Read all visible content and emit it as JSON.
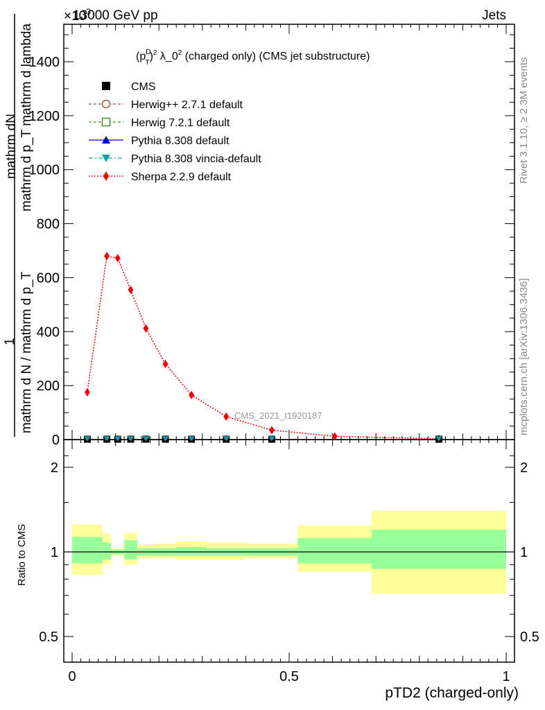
{
  "header": {
    "left": "13000 GeV pp",
    "right": "Jets",
    "exponent": "×10",
    "exponent_power": "3"
  },
  "side_labels": {
    "rivet": "Rivet 3.1.10, ≥ 2.3M events",
    "mcplots": "mcplots.cern.ch [arXiv:1306.3436]"
  },
  "chart_data": [
    {
      "type": "line",
      "panel": "main",
      "title": "(p_T^D)^2 λ_0^2 (charged only) (CMS jet substructure)",
      "title_parts": {
        "a": "(p",
        "sup1": "D",
        "sub1": "T",
        "b": ")",
        "sup2": "2",
        "c": " λ_0",
        "sup3": "2",
        "d": " (charged only) (CMS jet substructure)"
      },
      "ylabel_num": "mathrm dN",
      "ylabel_den": "mathrm d p_T mathrm d lambda",
      "ylabel_one": "1",
      "ylabel_den2": "mathrm d N / mathrm d p_T",
      "ylabel_full": "mathrm d N / mathrm d p_T mathrm d p_T mathrm d lambda",
      "xlabel": "pTD2 (charged-only)",
      "ylim": [
        0,
        1550
      ],
      "xlim": [
        -0.02,
        1.0
      ],
      "y_ticks": [
        {
          "v": 0,
          "label": "0"
        },
        {
          "v": 200,
          "label": "200"
        },
        {
          "v": 400,
          "label": "400"
        },
        {
          "v": 600,
          "label": "600"
        },
        {
          "v": 800,
          "label": "800"
        },
        {
          "v": 1000,
          "label": "1000"
        },
        {
          "v": 1200,
          "label": "1200"
        },
        {
          "v": 1400,
          "label": "1400"
        }
      ],
      "watermark": "CMS_2021_I1920187",
      "legend": [
        {
          "name": "CMS",
          "color": "#000000",
          "marker": "square-filled",
          "line": "none"
        },
        {
          "name": "Herwig++ 2.7.1 default",
          "color": "#a0522d",
          "marker": "circle-open",
          "line": "dashed"
        },
        {
          "name": "Herwig 7.2.1 default",
          "color": "#3a8a1e",
          "marker": "square-open",
          "line": "dashed"
        },
        {
          "name": "Pythia 8.308 default",
          "color": "#0000cc",
          "marker": "triangle-up",
          "line": "solid"
        },
        {
          "name": "Pythia 8.308 vincia-default",
          "color": "#1a9aaa",
          "marker": "triangle-down",
          "line": "dashdot"
        },
        {
          "name": "Sherpa 2.2.9 default",
          "color": "#ee0000",
          "marker": "diamond",
          "line": "dotted"
        }
      ],
      "series": [
        {
          "name": "Sherpa 2.2.9 default",
          "color": "#ee0000",
          "x": [
            0.035,
            0.08,
            0.105,
            0.135,
            0.17,
            0.215,
            0.275,
            0.355,
            0.46,
            0.605,
            0.845
          ],
          "values": [
            175,
            680,
            672,
            555,
            412,
            280,
            165,
            85,
            35,
            12,
            3
          ]
        },
        {
          "name": "CMS",
          "color": "#000000",
          "x": [
            0.035,
            0.08,
            0.105,
            0.135,
            0.17,
            0.215,
            0.275,
            0.355,
            0.46,
            0.845
          ],
          "values": [
            1.5,
            1.5,
            1.5,
            1.5,
            1.5,
            1.5,
            1.5,
            1.5,
            1.5,
            1.5
          ]
        }
      ]
    },
    {
      "type": "area",
      "panel": "ratio",
      "ylabel": "Ratio to CMS",
      "ylim": [
        0.4,
        2.3
      ],
      "y_ticks": [
        {
          "v": 0.5,
          "label": "0.5"
        },
        {
          "v": 1,
          "label": "1"
        },
        {
          "v": 2,
          "label": "2"
        }
      ],
      "x_ticks": [
        {
          "v": 0,
          "label": "0"
        },
        {
          "v": 0.5,
          "label": "0.5"
        },
        {
          "v": 1,
          "label": "1"
        }
      ],
      "bins": [
        {
          "lo": 0.0,
          "hi": 0.07,
          "in_lo": 0.91,
          "in_hi": 1.13,
          "out_lo": 0.83,
          "out_hi": 1.25
        },
        {
          "lo": 0.07,
          "hi": 0.09,
          "in_lo": 0.94,
          "in_hi": 1.08,
          "out_lo": 0.9,
          "out_hi": 1.16
        },
        {
          "lo": 0.09,
          "hi": 0.12,
          "in_lo": 0.98,
          "in_hi": 1.02,
          "out_lo": 0.97,
          "out_hi": 1.03
        },
        {
          "lo": 0.12,
          "hi": 0.15,
          "in_lo": 0.94,
          "in_hi": 1.1,
          "out_lo": 0.9,
          "out_hi": 1.17
        },
        {
          "lo": 0.15,
          "hi": 0.19,
          "in_lo": 0.97,
          "in_hi": 1.03,
          "out_lo": 0.95,
          "out_hi": 1.06
        },
        {
          "lo": 0.19,
          "hi": 0.24,
          "in_lo": 0.97,
          "in_hi": 1.03,
          "out_lo": 0.95,
          "out_hi": 1.07
        },
        {
          "lo": 0.24,
          "hi": 0.31,
          "in_lo": 0.97,
          "in_hi": 1.04,
          "out_lo": 0.94,
          "out_hi": 1.09
        },
        {
          "lo": 0.31,
          "hi": 0.4,
          "in_lo": 0.97,
          "in_hi": 1.03,
          "out_lo": 0.94,
          "out_hi": 1.08
        },
        {
          "lo": 0.4,
          "hi": 0.52,
          "in_lo": 0.97,
          "in_hi": 1.03,
          "out_lo": 0.95,
          "out_hi": 1.07
        },
        {
          "lo": 0.52,
          "hi": 0.69,
          "in_lo": 0.91,
          "in_hi": 1.12,
          "out_lo": 0.85,
          "out_hi": 1.24
        },
        {
          "lo": 0.69,
          "hi": 1.0,
          "in_lo": 0.87,
          "in_hi": 1.2,
          "out_lo": 0.71,
          "out_hi": 1.4
        }
      ]
    }
  ]
}
